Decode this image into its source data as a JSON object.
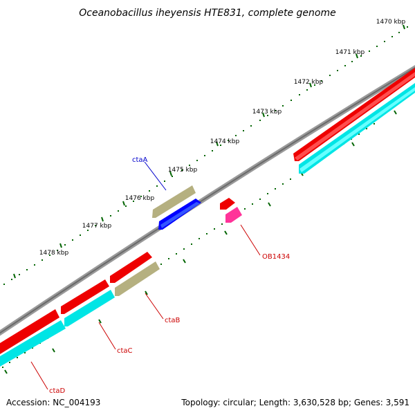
{
  "title": "Oceanobacillus iheyensis HTE831, complete genome",
  "kbp_labels": [
    "1470 kbp",
    "1471 kbp",
    "1472 kbp",
    "1473 kbp",
    "1474 kbp",
    "1475 kbp",
    "1476 kbp",
    "1477 kbp",
    "1478 kbp"
  ],
  "genes": {
    "ctaA": "ctaA",
    "OB1434": "OB1434",
    "ctaB": "ctaB",
    "ctaC": "ctaC",
    "ctaD": "ctaD"
  },
  "footer": {
    "accession": "Accession: NC_004193",
    "summary": "Topology: circular; Length: 3,630,528 bp; Genes: 3,591"
  },
  "colors": {
    "cds_forward": "#ff0000",
    "cds_reverse": "#00ffff",
    "gene_olive": "#b5b080",
    "gene_blue": "#0000ff",
    "gene_pink": "#ff3399",
    "backbone": "#808080",
    "tick": "#006400"
  }
}
